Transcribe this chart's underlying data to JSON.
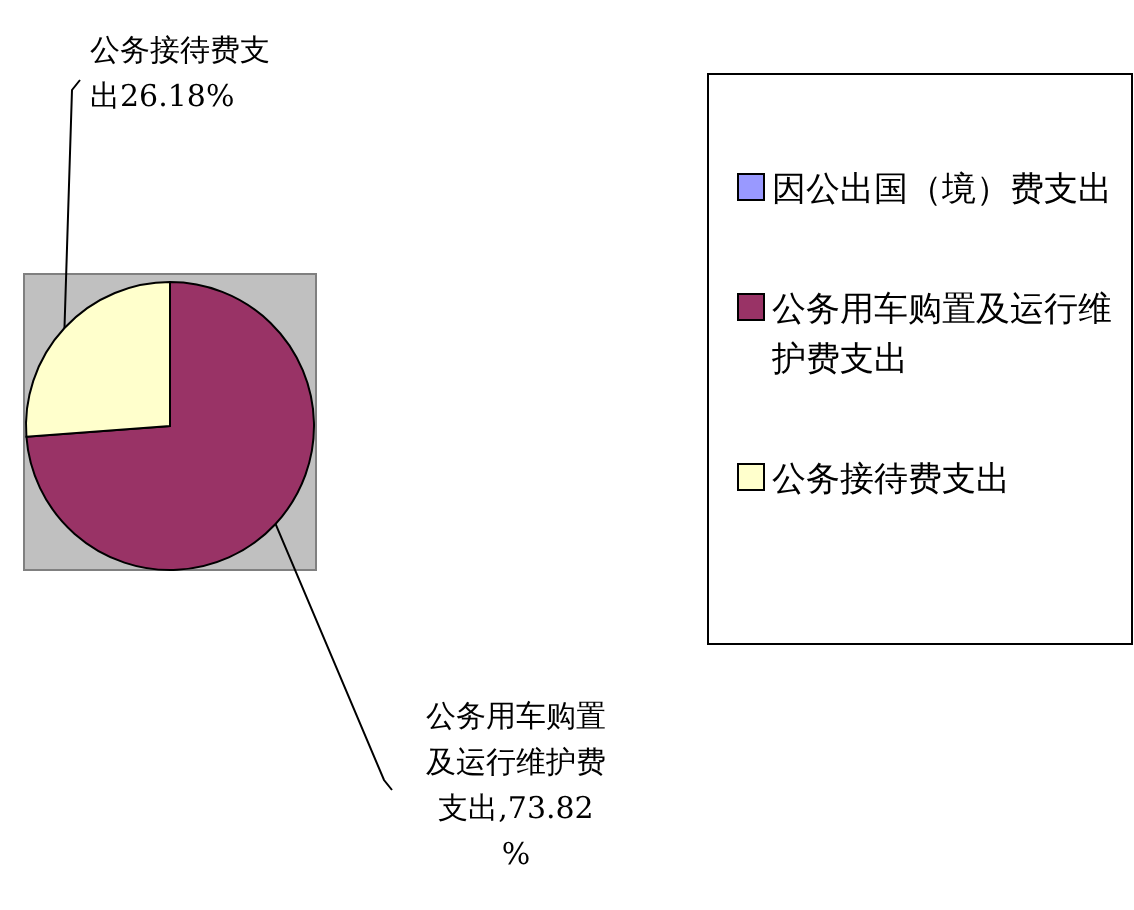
{
  "chart_data": {
    "type": "pie",
    "categories": [
      "因公出国（境）费支出",
      "公务用车购置及运行维护费支出",
      "公务接待费支出"
    ],
    "values": [
      0,
      73.82,
      26.18
    ],
    "colors": [
      "#9999ff",
      "#993366",
      "#ffffcc"
    ],
    "value_labels": [
      null,
      "公务用车购置及运行维护费支出,73.82%",
      "公务接待费支出26.18%"
    ],
    "legend": "right"
  }
}
